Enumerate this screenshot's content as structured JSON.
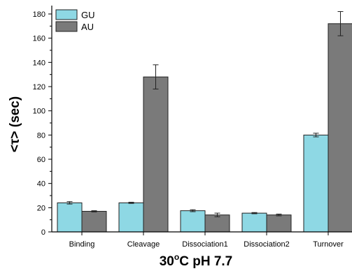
{
  "chart_data": {
    "type": "bar",
    "title": "30 °C pH 7.7",
    "title_parts": {
      "number": "30",
      "degree": "o",
      "unit_ph": "C pH 7.7"
    },
    "xlabel": "",
    "ylabel": "<τ> (sec)",
    "ylim": [
      0,
      180
    ],
    "yticks": [
      0,
      20,
      40,
      60,
      80,
      100,
      120,
      140,
      160,
      180
    ],
    "categories": [
      "Binding",
      "Cleavage",
      "Dissociation1",
      "Dissociation2",
      "Turnover"
    ],
    "series": [
      {
        "name": "GU",
        "color": "#8ed8e4",
        "values": [
          24,
          24,
          17.5,
          15.5,
          80
        ],
        "errors": [
          1,
          0.5,
          0.8,
          0.5,
          1.5
        ]
      },
      {
        "name": "AU",
        "color": "#7a7a7a",
        "values": [
          17,
          128,
          14,
          14,
          172
        ],
        "errors": [
          0.5,
          10,
          1.5,
          0.7,
          10
        ]
      }
    ],
    "legend_position": "top-left",
    "grid": false
  }
}
